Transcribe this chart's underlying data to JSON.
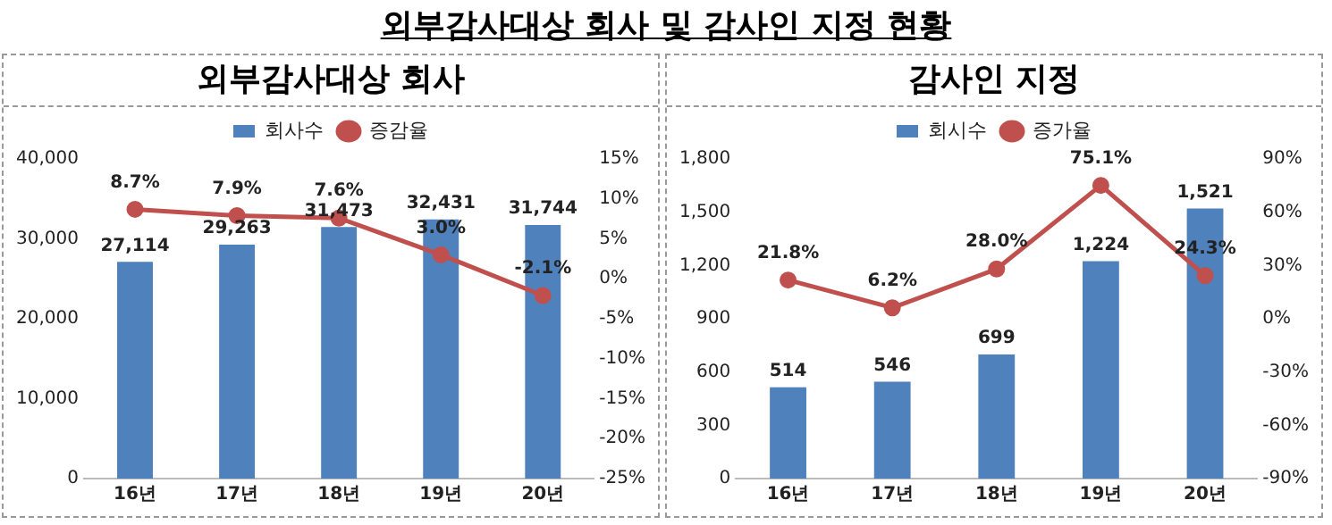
{
  "chart_data": [
    {
      "type": "bar",
      "title": "외부감사대상 회사 및 감사인 지정 현황",
      "subtitle": "외부감사대상 회사",
      "categories": [
        "16년",
        "17년",
        "18년",
        "19년",
        "20년"
      ],
      "series": [
        {
          "name": "회사수",
          "color": "#4f81bd",
          "values": [
            27114,
            29263,
            31473,
            32431,
            31744
          ],
          "value_labels": [
            "27,114",
            "29,263",
            "31,473",
            "32,431",
            "31,744"
          ]
        },
        {
          "name": "증감율",
          "type": "line",
          "axis": "y2",
          "color": "#c0504d",
          "values": [
            8.7,
            7.9,
            7.6,
            3.0,
            -2.1
          ],
          "value_labels": [
            "8.7%",
            "7.9%",
            "7.6%",
            "3.0%",
            "-2.1%"
          ]
        }
      ],
      "ylim": [
        0,
        40000
      ],
      "yticks": [
        0,
        {
          "value": 10000,
          "label": "10,000"
        },
        {
          "value": 20000,
          "label": "20,000"
        },
        {
          "value": 30000,
          "label": "30,000"
        },
        {
          "value": 40000,
          "label": "40,000"
        }
      ],
      "y2lim": [
        -25,
        15
      ],
      "y2ticks": [
        {
          "value": -25,
          "label": "-25%"
        },
        {
          "value": -20,
          "label": "-20%"
        },
        {
          "value": -15,
          "label": "-15%"
        },
        {
          "value": -10,
          "label": "-10%"
        },
        {
          "value": -5,
          "label": "-5%"
        },
        {
          "value": 0,
          "label": "0%"
        },
        {
          "value": 5,
          "label": "5%"
        },
        {
          "value": 10,
          "label": "10%"
        },
        {
          "value": 15,
          "label": "15%"
        }
      ],
      "legend": "top",
      "marker": "circle",
      "grid": false
    },
    {
      "type": "bar",
      "title": "감사인 지정",
      "categories": [
        "16년",
        "17년",
        "18년",
        "19년",
        "20년"
      ],
      "series": [
        {
          "name": "회시수",
          "color": "#4f81bd",
          "values": [
            514,
            546,
            699,
            1224,
            1521
          ],
          "value_labels": [
            "514",
            "546",
            "699",
            "1,224",
            "1,521"
          ]
        },
        {
          "name": "증가율",
          "type": "line",
          "axis": "y2",
          "color": "#c0504d",
          "values": [
            21.8,
            6.2,
            28.0,
            75.1,
            24.3
          ],
          "value_labels": [
            "21.8%",
            "6.2%",
            "28.0%",
            "75.1%",
            "24.3%"
          ]
        }
      ],
      "ylim": [
        0,
        1800
      ],
      "yticks": [
        0,
        300,
        600,
        900,
        {
          "value": 1200,
          "label": "1,200"
        },
        {
          "value": 1500,
          "label": "1,500"
        },
        {
          "value": 1800,
          "label": "1,800"
        }
      ],
      "y2lim": [
        -90,
        90
      ],
      "y2ticks": [
        {
          "value": -90,
          "label": "-90%"
        },
        {
          "value": -60,
          "label": "-60%"
        },
        {
          "value": -30,
          "label": "-30%"
        },
        {
          "value": 0,
          "label": "0%"
        },
        {
          "value": 30,
          "label": "30%"
        },
        {
          "value": 60,
          "label": "60%"
        },
        {
          "value": 90,
          "label": "90%"
        }
      ],
      "legend": "top",
      "marker": "circle",
      "grid": false
    }
  ]
}
